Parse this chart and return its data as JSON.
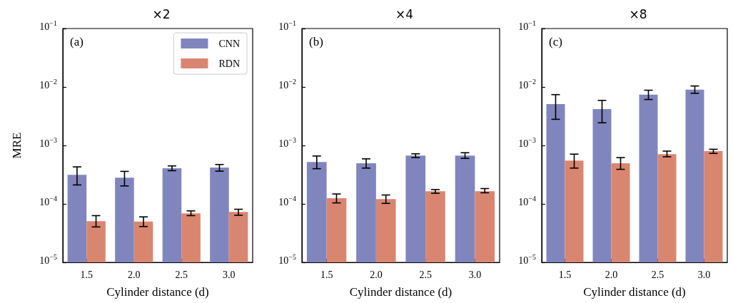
{
  "chart_data": [
    {
      "type": "bar",
      "title": "×2",
      "xlabel": "Cylinder distance (d)",
      "ylabel": "MRE",
      "annotations": [
        "(a)"
      ],
      "categories": [
        "1.5",
        "2.0",
        "2.5",
        "3.0"
      ],
      "log": "y",
      "ylim": [
        1e-05,
        0.1
      ],
      "yticks": [
        {
          "value": 1e-05,
          "label": "10$^{−5}$"
        },
        {
          "value": 0.0001,
          "label": "10$^{−4}$"
        },
        {
          "value": 0.001,
          "label": "10$^{−3}$"
        },
        {
          "value": 0.01,
          "label": "10$^{−2}$"
        },
        {
          "value": 0.1,
          "label": "10$^{−1}$"
        }
      ],
      "grid": false,
      "legend": "top right",
      "series": [
        {
          "name": "CNN",
          "color": "#8086bd",
          "values": [
            0.000315,
            0.00028,
            0.000406,
            0.000418
          ],
          "errors": [
            [
              0.000211,
              0.00043
            ],
            [
              0.000203,
              0.00036
            ],
            [
              0.00037,
              0.000447
            ],
            [
              0.000363,
              0.000472
            ]
          ]
        },
        {
          "name": "RDN",
          "color": "#d98670",
          "values": [
            5.07e-05,
            5e-05,
            6.9e-05,
            7.3e-05
          ],
          "errors": [
            [
              4.04e-05,
              6.3e-05
            ],
            [
              4.1e-05,
              6e-05
            ],
            [
              6.3e-05,
              7.6e-05
            ],
            [
              6.4e-05,
              8.1e-05
            ]
          ]
        }
      ]
    },
    {
      "type": "bar",
      "title": "×4",
      "xlabel": "Cylinder distance (d)",
      "annotations": [
        "(b)"
      ],
      "categories": [
        "1.5",
        "2.0",
        "2.5",
        "3.0"
      ],
      "log": "y",
      "ylim": [
        1e-05,
        0.1
      ],
      "yticks": [
        {
          "value": 1e-05,
          "label": "10$^{−5}$"
        },
        {
          "value": 0.0001,
          "label": "10$^{−4}$"
        },
        {
          "value": 0.001,
          "label": "10$^{−3}$"
        },
        {
          "value": 0.01,
          "label": "10$^{−2}$"
        },
        {
          "value": 0.1,
          "label": "10$^{−1}$"
        }
      ],
      "grid": false,
      "legend": false,
      "series": [
        {
          "color": "#8086bd",
          "values": [
            0.00052,
            0.000495,
            0.00067,
            0.00067
          ],
          "errors": [
            [
              0.0004,
              0.00066
            ],
            [
              0.00041,
              0.00059
            ],
            [
              0.00062,
              0.00072
            ],
            [
              0.0006,
              0.00075
            ]
          ]
        },
        {
          "color": "#d98670",
          "values": [
            0.000125,
            0.000121,
            0.000165,
            0.000165
          ],
          "errors": [
            [
              0.000104,
              0.000148
            ],
            [
              0.000102,
              0.000142
            ],
            [
              0.000152,
              0.000176
            ],
            [
              0.000155,
              0.000183
            ]
          ]
        }
      ]
    },
    {
      "type": "bar",
      "title": "×8",
      "xlabel": "Cylinder distance (d)",
      "annotations": [
        "(c)"
      ],
      "categories": [
        "1.5",
        "2.0",
        "2.5",
        "3.0"
      ],
      "log": "y",
      "ylim": [
        1e-05,
        0.1
      ],
      "yticks": [
        {
          "value": 1e-05,
          "label": "10$^{−5}$"
        },
        {
          "value": 0.0001,
          "label": "10$^{−4}$"
        },
        {
          "value": 0.001,
          "label": "10$^{−3}$"
        },
        {
          "value": 0.01,
          "label": "10$^{−2}$"
        },
        {
          "value": 0.1,
          "label": "10$^{−1}$"
        }
      ],
      "grid": false,
      "legend": false,
      "series": [
        {
          "color": "#8086bd",
          "values": [
            0.0051,
            0.0042,
            0.0074,
            0.009
          ],
          "errors": [
            [
              0.0028,
              0.0074
            ],
            [
              0.00244,
              0.0059
            ],
            [
              0.0061,
              0.0088
            ],
            [
              0.0078,
              0.0104
            ]
          ]
        },
        {
          "color": "#d98670",
          "values": [
            0.00055,
            0.000495,
            0.00071,
            0.0008
          ],
          "errors": [
            [
              0.00041,
              0.00071
            ],
            [
              0.00039,
              0.00062
            ],
            [
              0.00064,
              0.0008
            ],
            [
              0.00073,
              0.00086
            ]
          ]
        }
      ]
    }
  ]
}
